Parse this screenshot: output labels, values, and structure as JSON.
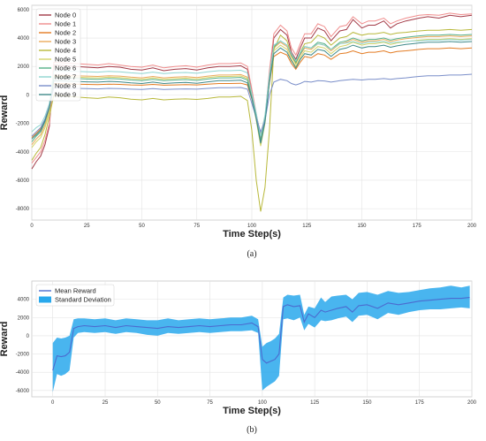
{
  "chart_data": [
    {
      "type": "line",
      "caption": "(a)",
      "xlabel": "Time Step(s)",
      "ylabel": "Reward",
      "xlim": [
        0,
        200
      ],
      "ylim": [
        -8800,
        6300
      ],
      "xticks": [
        0,
        25,
        50,
        75,
        100,
        125,
        150,
        175,
        200
      ],
      "yticks": [
        -8000,
        -6000,
        -4000,
        -2000,
        0,
        2000,
        4000,
        6000
      ],
      "grid": true,
      "legend": "top-left",
      "x": [
        0,
        2,
        4,
        6,
        8,
        10,
        15,
        20,
        25,
        30,
        35,
        40,
        45,
        50,
        55,
        60,
        65,
        70,
        75,
        80,
        85,
        90,
        95,
        98,
        100,
        102,
        104,
        106,
        108,
        110,
        113,
        116,
        118,
        120,
        122,
        124,
        127,
        130,
        133,
        136,
        140,
        143,
        146,
        150,
        153,
        156,
        160,
        163,
        166,
        170,
        173,
        176,
        180,
        185,
        190,
        195,
        200
      ],
      "series": [
        {
          "name": "Node 0",
          "color": "#a33a47",
          "values": [
            -5200,
            -4700,
            -4300,
            -3500,
            -2200,
            2100,
            2050,
            2000,
            1950,
            1900,
            2000,
            1950,
            1800,
            1750,
            1900,
            1700,
            1800,
            1850,
            1750,
            1900,
            2000,
            2000,
            2050,
            1800,
            200,
            -1500,
            -3200,
            -1800,
            1500,
            4000,
            4600,
            4200,
            3000,
            2500,
            3300,
            4000,
            4000,
            4700,
            4500,
            3800,
            4500,
            4600,
            5300,
            4700,
            4900,
            4900,
            5200,
            4700,
            5000,
            5200,
            5300,
            5400,
            5500,
            5400,
            5600,
            5500,
            5600
          ]
        },
        {
          "name": "Node 1",
          "color": "#f08c8c",
          "values": [
            -4800,
            -4400,
            -4000,
            -3200,
            -2000,
            2300,
            2250,
            2200,
            2150,
            2100,
            2200,
            2100,
            2000,
            1950,
            2100,
            1900,
            2000,
            2050,
            1950,
            2100,
            2200,
            2200,
            2250,
            2000,
            400,
            -1300,
            -3000,
            -1600,
            1700,
            4300,
            4900,
            4500,
            3300,
            2800,
            3600,
            4300,
            4300,
            5000,
            4800,
            4100,
            4800,
            4900,
            5500,
            5000,
            5200,
            5200,
            5400,
            5000,
            5200,
            5400,
            5500,
            5600,
            5650,
            5600,
            5750,
            5650,
            5700
          ]
        },
        {
          "name": "Node 2",
          "color": "#e37b22",
          "values": [
            -3000,
            -2700,
            -2400,
            -1800,
            -800,
            800,
            780,
            760,
            740,
            720,
            760,
            740,
            700,
            680,
            740,
            680,
            700,
            720,
            700,
            760,
            800,
            800,
            820,
            700,
            -300,
            -1400,
            -2800,
            -1500,
            800,
            2700,
            3000,
            2800,
            2200,
            1800,
            2300,
            2700,
            2600,
            2900,
            2800,
            2500,
            2900,
            2950,
            3100,
            2900,
            3000,
            3000,
            3100,
            2950,
            3050,
            3100,
            3150,
            3200,
            3250,
            3250,
            3300,
            3250,
            3300
          ]
        },
        {
          "name": "Node 3",
          "color": "#ebaa5c",
          "values": [
            -3500,
            -3100,
            -2800,
            -2100,
            -1100,
            1400,
            1380,
            1350,
            1320,
            1300,
            1350,
            1320,
            1250,
            1200,
            1300,
            1200,
            1250,
            1280,
            1220,
            1320,
            1400,
            1400,
            1430,
            1250,
            0,
            -1600,
            -3300,
            -1800,
            1100,
            3300,
            3700,
            3400,
            2700,
            2200,
            2800,
            3300,
            3200,
            3600,
            3500,
            3100,
            3600,
            3700,
            3900,
            3700,
            3800,
            3800,
            3900,
            3750,
            3850,
            3950,
            4000,
            4050,
            4100,
            4100,
            4150,
            4100,
            4150
          ]
        },
        {
          "name": "Node 4",
          "color": "#b8b83a",
          "values": [
            -4600,
            -4100,
            -3700,
            -2800,
            -1500,
            0,
            -80,
            -150,
            -200,
            -250,
            -150,
            -200,
            -300,
            -350,
            -250,
            -350,
            -300,
            -280,
            -320,
            -250,
            -150,
            -150,
            -100,
            -400,
            -2500,
            -6000,
            -8200,
            -6500,
            -2500,
            3200,
            4200,
            3800,
            2800,
            2200,
            3000,
            3600,
            3700,
            4200,
            4000,
            3500,
            4000,
            4100,
            4400,
            4200,
            4300,
            4300,
            4400,
            4250,
            4350,
            4400,
            4450,
            4500,
            4550,
            4550,
            4600,
            4550,
            4600
          ]
        },
        {
          "name": "Node 5",
          "color": "#d4d46a",
          "values": [
            -3700,
            -3300,
            -3000,
            -2300,
            -1200,
            1300,
            1280,
            1250,
            1220,
            1200,
            1250,
            1220,
            1150,
            1100,
            1200,
            1100,
            1150,
            1180,
            1120,
            1220,
            1300,
            1300,
            1330,
            1150,
            -200,
            -1800,
            -3600,
            -2000,
            1000,
            3100,
            3500,
            3200,
            2500,
            2000,
            2600,
            3100,
            3000,
            3400,
            3300,
            2900,
            3400,
            3500,
            3700,
            3500,
            3600,
            3600,
            3700,
            3550,
            3650,
            3750,
            3800,
            3850,
            3900,
            3900,
            3950,
            3900,
            3950
          ]
        },
        {
          "name": "Node 6",
          "color": "#56b089",
          "values": [
            -3300,
            -2900,
            -2600,
            -1900,
            -900,
            1200,
            1180,
            1150,
            1120,
            1100,
            1150,
            1120,
            1050,
            1000,
            1100,
            1000,
            1050,
            1080,
            1020,
            1120,
            1200,
            1200,
            1230,
            1050,
            -150,
            -1500,
            -3200,
            -1700,
            1200,
            3400,
            3800,
            3500,
            2800,
            2300,
            2900,
            3400,
            3300,
            3700,
            3600,
            3200,
            3700,
            3800,
            4000,
            3800,
            3900,
            3900,
            4000,
            3850,
            3950,
            4050,
            4100,
            4150,
            4200,
            4200,
            4250,
            4200,
            4250
          ]
        },
        {
          "name": "Node 7",
          "color": "#8fd4d0",
          "values": [
            -2600,
            -2300,
            -2100,
            -1500,
            -600,
            1700,
            1680,
            1650,
            1620,
            1600,
            1650,
            1620,
            1550,
            1500,
            1600,
            1500,
            1550,
            1580,
            1520,
            1620,
            1700,
            1700,
            1730,
            1550,
            100,
            -1300,
            -2900,
            -1400,
            1400,
            3500,
            3800,
            3500,
            2900,
            2400,
            3000,
            3400,
            3300,
            3600,
            3500,
            3200,
            3600,
            3650,
            3750,
            3600,
            3700,
            3700,
            3750,
            3650,
            3700,
            3750,
            3800,
            3800,
            3850,
            3850,
            3900,
            3850,
            3900
          ]
        },
        {
          "name": "Node 8",
          "color": "#7a8ec9",
          "values": [
            -2900,
            -2600,
            -2300,
            -1700,
            -800,
            500,
            480,
            460,
            440,
            420,
            460,
            440,
            400,
            380,
            440,
            380,
            400,
            420,
            400,
            460,
            500,
            500,
            520,
            400,
            -600,
            -1600,
            -2600,
            -1800,
            0,
            900,
            1100,
            1000,
            800,
            700,
            800,
            950,
            900,
            1000,
            980,
            900,
            1000,
            1050,
            1100,
            1050,
            1100,
            1100,
            1150,
            1100,
            1150,
            1200,
            1250,
            1300,
            1350,
            1350,
            1400,
            1400,
            1450
          ]
        },
        {
          "name": "Node 9",
          "color": "#3f8a8a",
          "values": [
            -3100,
            -2800,
            -2500,
            -1800,
            -900,
            1000,
            980,
            950,
            920,
            900,
            950,
            920,
            850,
            800,
            900,
            800,
            850,
            880,
            820,
            920,
            1000,
            1000,
            1030,
            850,
            -250,
            -1700,
            -3400,
            -1900,
            900,
            2900,
            3300,
            3000,
            2400,
            1900,
            2500,
            2900,
            2800,
            3200,
            3100,
            2700,
            3200,
            3300,
            3500,
            3300,
            3400,
            3400,
            3500,
            3350,
            3450,
            3550,
            3600,
            3650,
            3700,
            3700,
            3750,
            3700,
            3750
          ]
        }
      ]
    },
    {
      "type": "area",
      "caption": "(b)",
      "xlabel": "Time Step(s)",
      "ylabel": "Reward",
      "xlim": [
        -10,
        200
      ],
      "ylim": [
        -6700,
        6000
      ],
      "xticks": [
        0,
        25,
        50,
        75,
        100,
        125,
        150,
        175,
        200
      ],
      "yticks": [
        -6000,
        -4000,
        -2000,
        0,
        2000,
        4000
      ],
      "grid": true,
      "legend": "top-left",
      "x": [
        0,
        2,
        4,
        6,
        8,
        10,
        12,
        15,
        20,
        25,
        30,
        35,
        40,
        45,
        50,
        55,
        60,
        65,
        70,
        75,
        80,
        85,
        90,
        95,
        98,
        100,
        102,
        104,
        106,
        108,
        110,
        112,
        115,
        118,
        120,
        122,
        125,
        128,
        130,
        133,
        136,
        140,
        143,
        146,
        150,
        155,
        160,
        165,
        170,
        175,
        180,
        185,
        190,
        195,
        199
      ],
      "series": [
        {
          "name": "Mean Reward",
          "color": "#4b6bd0",
          "values": [
            -3800,
            -2200,
            -2300,
            -2200,
            -1800,
            800,
            1000,
            1100,
            1000,
            1100,
            900,
            1100,
            1000,
            900,
            800,
            1000,
            900,
            1000,
            1100,
            1000,
            1100,
            1200,
            1200,
            1400,
            1000,
            -2600,
            -3000,
            -2800,
            -2600,
            -2000,
            3200,
            3400,
            3200,
            3300,
            1500,
            2400,
            2000,
            2800,
            2600,
            2800,
            3000,
            3200,
            2600,
            3300,
            3400,
            3000,
            3600,
            3400,
            3600,
            3800,
            3900,
            4000,
            4100,
            4100,
            4200
          ]
        },
        {
          "name": "Standard Deviation",
          "color": "#29a8ec",
          "lower": [
            -6200,
            -4200,
            -4400,
            -4200,
            -3800,
            -200,
            300,
            400,
            300,
            400,
            200,
            400,
            300,
            100,
            0,
            300,
            200,
            300,
            400,
            300,
            400,
            500,
            500,
            600,
            300,
            -6000,
            -5600,
            -5300,
            -5000,
            -4400,
            1800,
            1900,
            1700,
            2000,
            600,
            1300,
            900,
            1700,
            1600,
            1700,
            1900,
            2100,
            1500,
            2200,
            2300,
            1800,
            2500,
            2300,
            2600,
            2800,
            2900,
            2900,
            3000,
            3100,
            3000
          ],
          "upper": [
            -800,
            -200,
            -300,
            -200,
            0,
            1800,
            1900,
            1900,
            1800,
            1900,
            1700,
            1900,
            1800,
            1700,
            1700,
            1900,
            1700,
            1800,
            1900,
            1800,
            1900,
            2000,
            2000,
            2200,
            1800,
            -1200,
            -800,
            -600,
            -300,
            200,
            4200,
            4500,
            4400,
            4500,
            2300,
            3200,
            3000,
            4200,
            3700,
            4300,
            4400,
            4500,
            4000,
            4700,
            4800,
            4500,
            4900,
            4700,
            4800,
            5000,
            5200,
            5300,
            5500,
            5300,
            5500
          ]
        }
      ]
    }
  ]
}
